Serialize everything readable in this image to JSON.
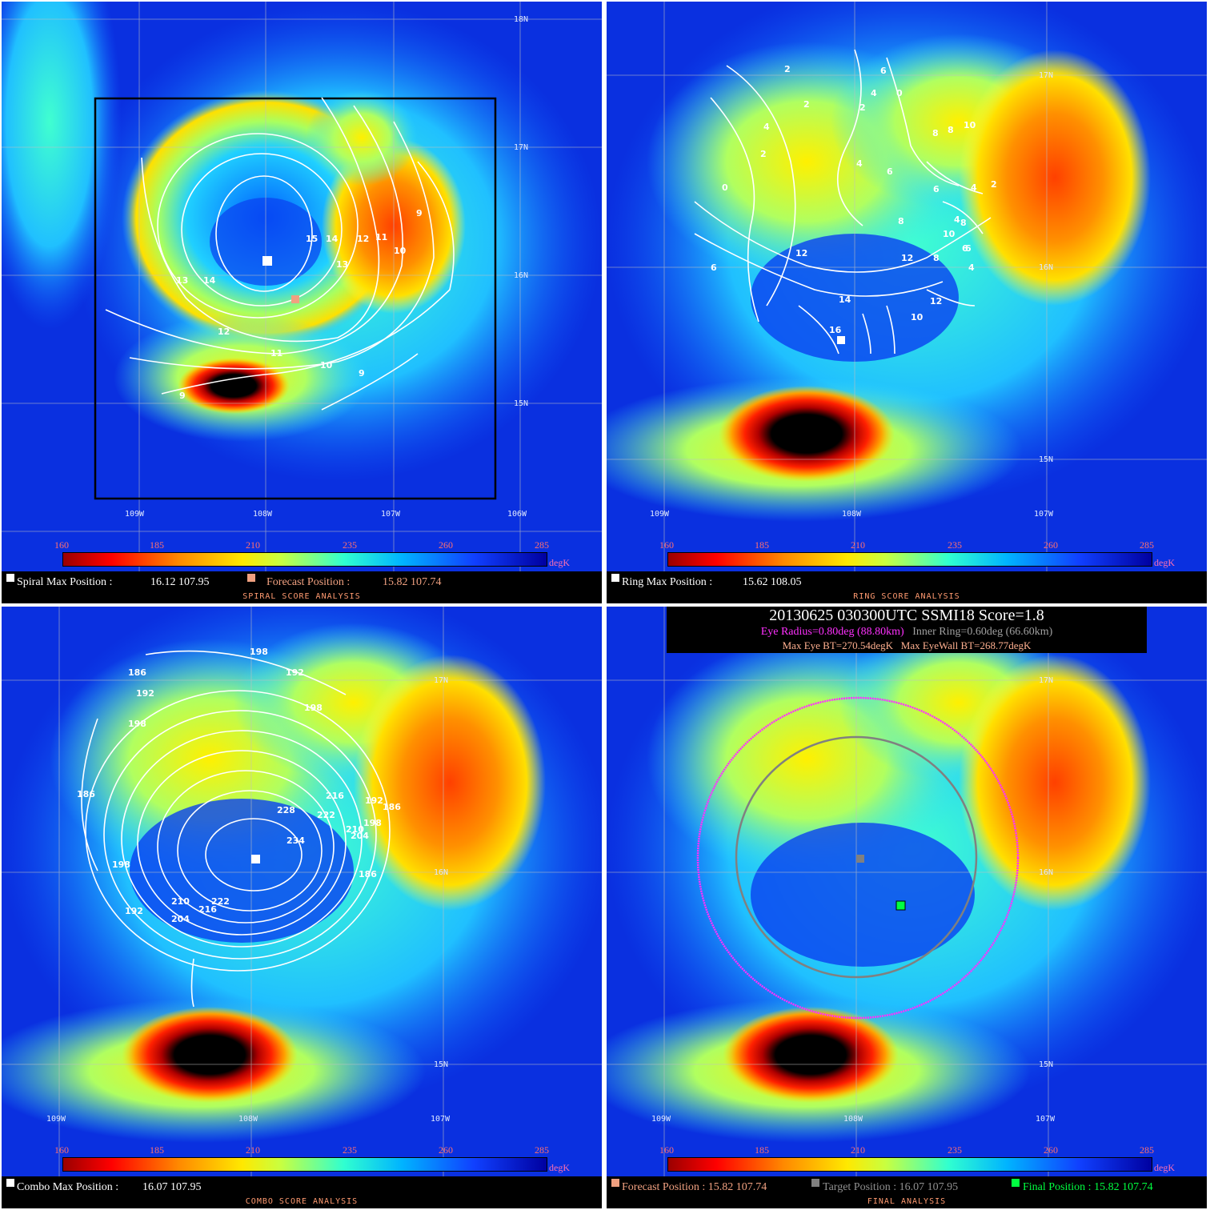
{
  "colorbar": {
    "ticks": [
      "160",
      "185",
      "210",
      "235",
      "260",
      "285"
    ],
    "unit": "degK"
  },
  "map_labels": {
    "lat": [
      "18N",
      "17N",
      "16N",
      "15N"
    ],
    "lon": [
      "109W",
      "108W",
      "107W",
      "106W"
    ]
  },
  "panels": {
    "spiral": {
      "title": "SPIRAL SCORE ANALYSIS",
      "max_label": "Spiral Max Position :",
      "max_value": "16.12 107.95",
      "forecast_label": "Forecast Position :",
      "forecast_value": "15.82 107.74",
      "contour_labels": [
        "15",
        "14",
        "12",
        "11",
        "10",
        "9",
        "13",
        "14",
        "13",
        "12",
        "11",
        "10",
        "9",
        "9"
      ]
    },
    "ring": {
      "title": "RING SCORE ANALYSIS",
      "max_label": "Ring Max Position :",
      "max_value": "15.62 108.05",
      "contour_labels": [
        "2",
        "6",
        "4",
        "0",
        "2",
        "2",
        "4",
        "8",
        "8",
        "10",
        "0",
        "2",
        "4",
        "6",
        "6",
        "4",
        "2",
        "8",
        "10",
        "6",
        "4",
        "6",
        "12",
        "8",
        "12",
        "8",
        "4",
        "14",
        "12",
        "16",
        "10",
        "6"
      ]
    },
    "combo": {
      "title": "COMBO SCORE ANALYSIS",
      "max_label": "Combo Max Position :",
      "max_value": "16.07 107.95",
      "contour_labels": [
        "198",
        "186",
        "192",
        "192",
        "198",
        "198",
        "186",
        "216",
        "192",
        "228",
        "222",
        "186",
        "210",
        "204",
        "198",
        "234",
        "186",
        "198",
        "192",
        "210",
        "216",
        "222",
        "204"
      ]
    },
    "final": {
      "title": "FINAL ANALYSIS",
      "header_line1": "20130625  030300UTC     SSMI18    Score=1.8",
      "eye_radius": "Eye Radius=0.80deg (88.80km)",
      "inner_ring": "Inner Ring=0.60deg (66.60km)",
      "max_eye_bt": "Max Eye BT=270.54degK",
      "max_eyewall_bt": "Max EyeWall BT=268.77degK",
      "forecast_label": "Forecast Position : 15.82 107.74",
      "target_label": "Target Position : 16.07 107.95",
      "final_label": "Final Position : 15.82 107.74"
    }
  },
  "colors": {
    "forecast": "#f0a080",
    "target": "#808080",
    "final": "#00ff40",
    "eye_radius": "#ff30ff",
    "inner_ring": "#a0a0a0",
    "bt_text": "#ffb090"
  }
}
